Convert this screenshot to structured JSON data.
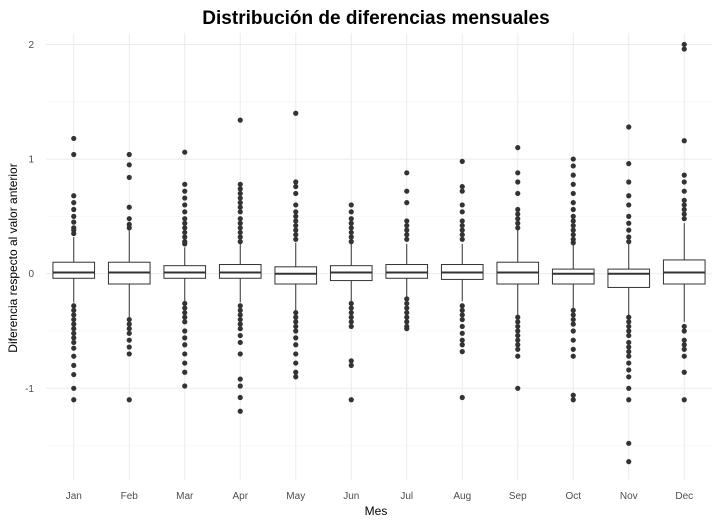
{
  "chart_data": {
    "type": "boxplot",
    "title": "Distribución de diferencias mensuales",
    "xlabel": "Mes",
    "ylabel": "Diferencia respecto al valor anterior",
    "ylim": [
      -1.8,
      2.1
    ],
    "yticks": [
      -1,
      0,
      1,
      2
    ],
    "categories": [
      "Jan",
      "Feb",
      "Mar",
      "Apr",
      "May",
      "Jun",
      "Jul",
      "Aug",
      "Sep",
      "Oct",
      "Nov",
      "Dec"
    ],
    "grid": true,
    "boxes": [
      {
        "q1": -0.04,
        "median": 0.01,
        "q3": 0.1,
        "whisker_low": -0.25,
        "whisker_high": 0.32,
        "outliers": [
          1.18,
          1.04,
          0.68,
          0.62,
          0.56,
          0.5,
          0.45,
          0.4,
          0.38,
          0.35,
          -0.28,
          -0.32,
          -0.36,
          -0.4,
          -0.44,
          -0.48,
          -0.52,
          -0.56,
          -0.6,
          -0.65,
          -0.72,
          -0.8,
          -0.88,
          -1.0,
          -1.1
        ]
      },
      {
        "q1": -0.09,
        "median": 0.01,
        "q3": 0.1,
        "whisker_low": -0.38,
        "whisker_high": 0.38,
        "outliers": [
          1.04,
          0.95,
          0.84,
          0.58,
          0.48,
          0.43,
          0.4,
          -0.4,
          -0.44,
          -0.48,
          -0.52,
          -0.58,
          -0.64,
          -0.7,
          -1.1
        ]
      },
      {
        "q1": -0.04,
        "median": 0.01,
        "q3": 0.07,
        "whisker_low": -0.24,
        "whisker_high": 0.23,
        "outliers": [
          1.06,
          0.78,
          0.72,
          0.66,
          0.6,
          0.54,
          0.48,
          0.44,
          0.4,
          0.36,
          0.32,
          0.28,
          0.26,
          -0.26,
          -0.3,
          -0.34,
          -0.38,
          -0.42,
          -0.5,
          -0.56,
          -0.62,
          -0.7,
          -0.78,
          -0.86,
          -0.98
        ]
      },
      {
        "q1": -0.04,
        "median": 0.01,
        "q3": 0.08,
        "whisker_low": -0.25,
        "whisker_high": 0.26,
        "outliers": [
          1.34,
          0.78,
          0.74,
          0.7,
          0.66,
          0.62,
          0.58,
          0.54,
          0.48,
          0.44,
          0.4,
          0.36,
          0.32,
          0.28,
          -0.28,
          -0.32,
          -0.36,
          -0.4,
          -0.44,
          -0.48,
          -0.54,
          -0.6,
          -0.7,
          -0.92,
          -0.98,
          -1.08,
          -1.2
        ]
      },
      {
        "q1": -0.09,
        "median": 0.0,
        "q3": 0.06,
        "whisker_low": -0.32,
        "whisker_high": 0.27,
        "outliers": [
          1.4,
          0.8,
          0.76,
          0.7,
          0.6,
          0.54,
          0.5,
          0.46,
          0.42,
          0.38,
          0.34,
          0.3,
          -0.34,
          -0.38,
          -0.42,
          -0.46,
          -0.5,
          -0.56,
          -0.62,
          -0.7,
          -0.78,
          -0.86,
          -0.9
        ]
      },
      {
        "q1": -0.06,
        "median": 0.01,
        "q3": 0.07,
        "whisker_low": -0.24,
        "whisker_high": 0.26,
        "outliers": [
          0.6,
          0.54,
          0.48,
          0.44,
          0.4,
          0.36,
          0.32,
          0.28,
          -0.26,
          -0.3,
          -0.34,
          -0.38,
          -0.42,
          -0.46,
          -0.76,
          -0.8,
          -1.1
        ]
      },
      {
        "q1": -0.04,
        "median": 0.01,
        "q3": 0.08,
        "whisker_low": -0.2,
        "whisker_high": 0.26,
        "outliers": [
          0.88,
          0.72,
          0.62,
          0.46,
          0.42,
          0.38,
          0.34,
          0.3,
          -0.22,
          -0.26,
          -0.3,
          -0.34,
          -0.38,
          -0.42,
          -0.46,
          -0.48
        ]
      },
      {
        "q1": -0.05,
        "median": 0.01,
        "q3": 0.08,
        "whisker_low": -0.24,
        "whisker_high": 0.26,
        "outliers": [
          0.98,
          0.76,
          0.72,
          0.6,
          0.54,
          0.46,
          0.42,
          0.38,
          0.34,
          0.3,
          -0.28,
          -0.32,
          -0.36,
          -0.4,
          -0.46,
          -0.52,
          -0.58,
          -0.62,
          -0.68,
          -1.08
        ]
      },
      {
        "q1": -0.09,
        "median": 0.01,
        "q3": 0.1,
        "whisker_low": -0.36,
        "whisker_high": 0.38,
        "outliers": [
          1.1,
          0.88,
          0.8,
          0.7,
          0.56,
          0.52,
          0.48,
          0.44,
          0.4,
          -0.38,
          -0.42,
          -0.46,
          -0.5,
          -0.54,
          -0.58,
          -0.62,
          -0.66,
          -0.72,
          -1.0
        ]
      },
      {
        "q1": -0.09,
        "median": 0.0,
        "q3": 0.04,
        "whisker_low": -0.3,
        "whisker_high": 0.25,
        "outliers": [
          1.0,
          0.94,
          0.86,
          0.78,
          0.7,
          0.62,
          0.56,
          0.5,
          0.46,
          0.42,
          0.38,
          0.34,
          0.3,
          0.27,
          -0.32,
          -0.36,
          -0.4,
          -0.44,
          -0.5,
          -0.58,
          -0.66,
          -0.72,
          -1.06,
          -1.1
        ]
      },
      {
        "q1": -0.12,
        "median": 0.0,
        "q3": 0.04,
        "whisker_low": -0.36,
        "whisker_high": 0.26,
        "outliers": [
          1.28,
          0.96,
          0.8,
          0.68,
          0.6,
          0.5,
          0.44,
          0.38,
          0.32,
          0.28,
          -0.38,
          -0.42,
          -0.46,
          -0.5,
          -0.54,
          -0.6,
          -0.64,
          -0.68,
          -0.72,
          -0.78,
          -0.84,
          -0.9,
          -1.0,
          -1.1,
          -1.48,
          -1.64
        ]
      },
      {
        "q1": -0.09,
        "median": 0.01,
        "q3": 0.12,
        "whisker_low": -0.42,
        "whisker_high": 0.44,
        "outliers": [
          2.0,
          1.96,
          1.16,
          0.86,
          0.8,
          0.72,
          0.64,
          0.6,
          0.56,
          0.52,
          0.48,
          -0.46,
          -0.5,
          -0.58,
          -0.62,
          -0.66,
          -0.72,
          -0.86,
          -1.1
        ]
      }
    ]
  }
}
